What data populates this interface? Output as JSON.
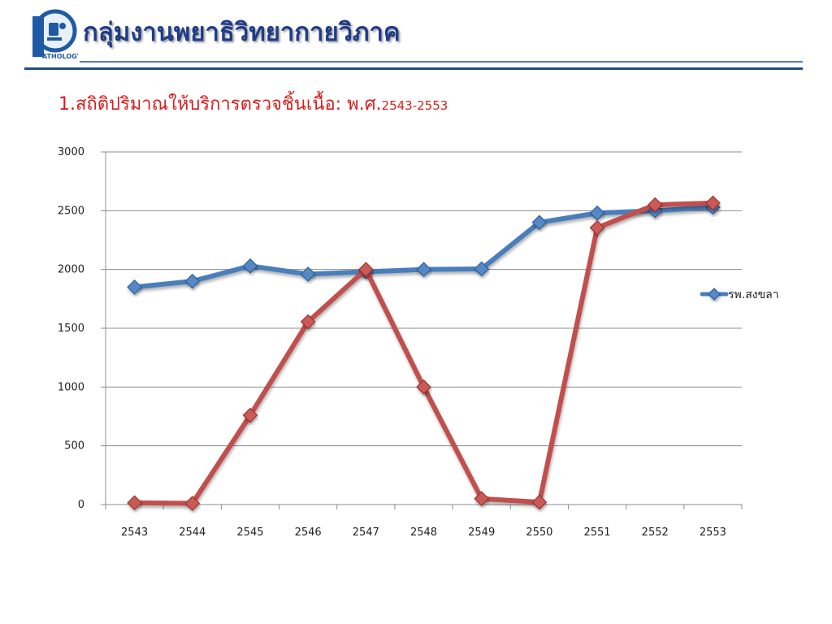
{
  "header": {
    "logo_text": "ATHOLOGY",
    "title": "กลุ่มงานพยาธิวิทยากายวิภาค",
    "subtitle": "1.สถิติปริมาณให้บริการตรวจชิ้นเนื้อ:  พ.ศ.",
    "subtitle_range": "2543-2553"
  },
  "colors": {
    "title": "#1f3c88",
    "subtitle": "#d81e1e",
    "rule": "#1f4e8c"
  },
  "chart_data": {
    "type": "line",
    "categories": [
      "2543",
      "2544",
      "2545",
      "2546",
      "2547",
      "2548",
      "2549",
      "2550",
      "2551",
      "2552",
      "2553"
    ],
    "series": [
      {
        "name": "รพ.สงขลา",
        "color": "#4a7ebb",
        "marker": "diamond",
        "values": [
          1850,
          1900,
          2030,
          1960,
          1980,
          2000,
          2005,
          2400,
          2480,
          2500,
          2530
        ]
      },
      {
        "name": "",
        "color": "#c0504d",
        "marker": "diamond",
        "values": [
          15,
          10,
          760,
          1555,
          2000,
          1000,
          50,
          20,
          2355,
          2550,
          2565
        ]
      }
    ],
    "ylim": [
      0,
      3000
    ],
    "yticks": [
      "0",
      "500",
      "1000",
      "1500",
      "2000",
      "2500",
      "3000"
    ],
    "grid": true,
    "legend_placement": "right",
    "title": "",
    "xlabel": "",
    "ylabel": ""
  }
}
